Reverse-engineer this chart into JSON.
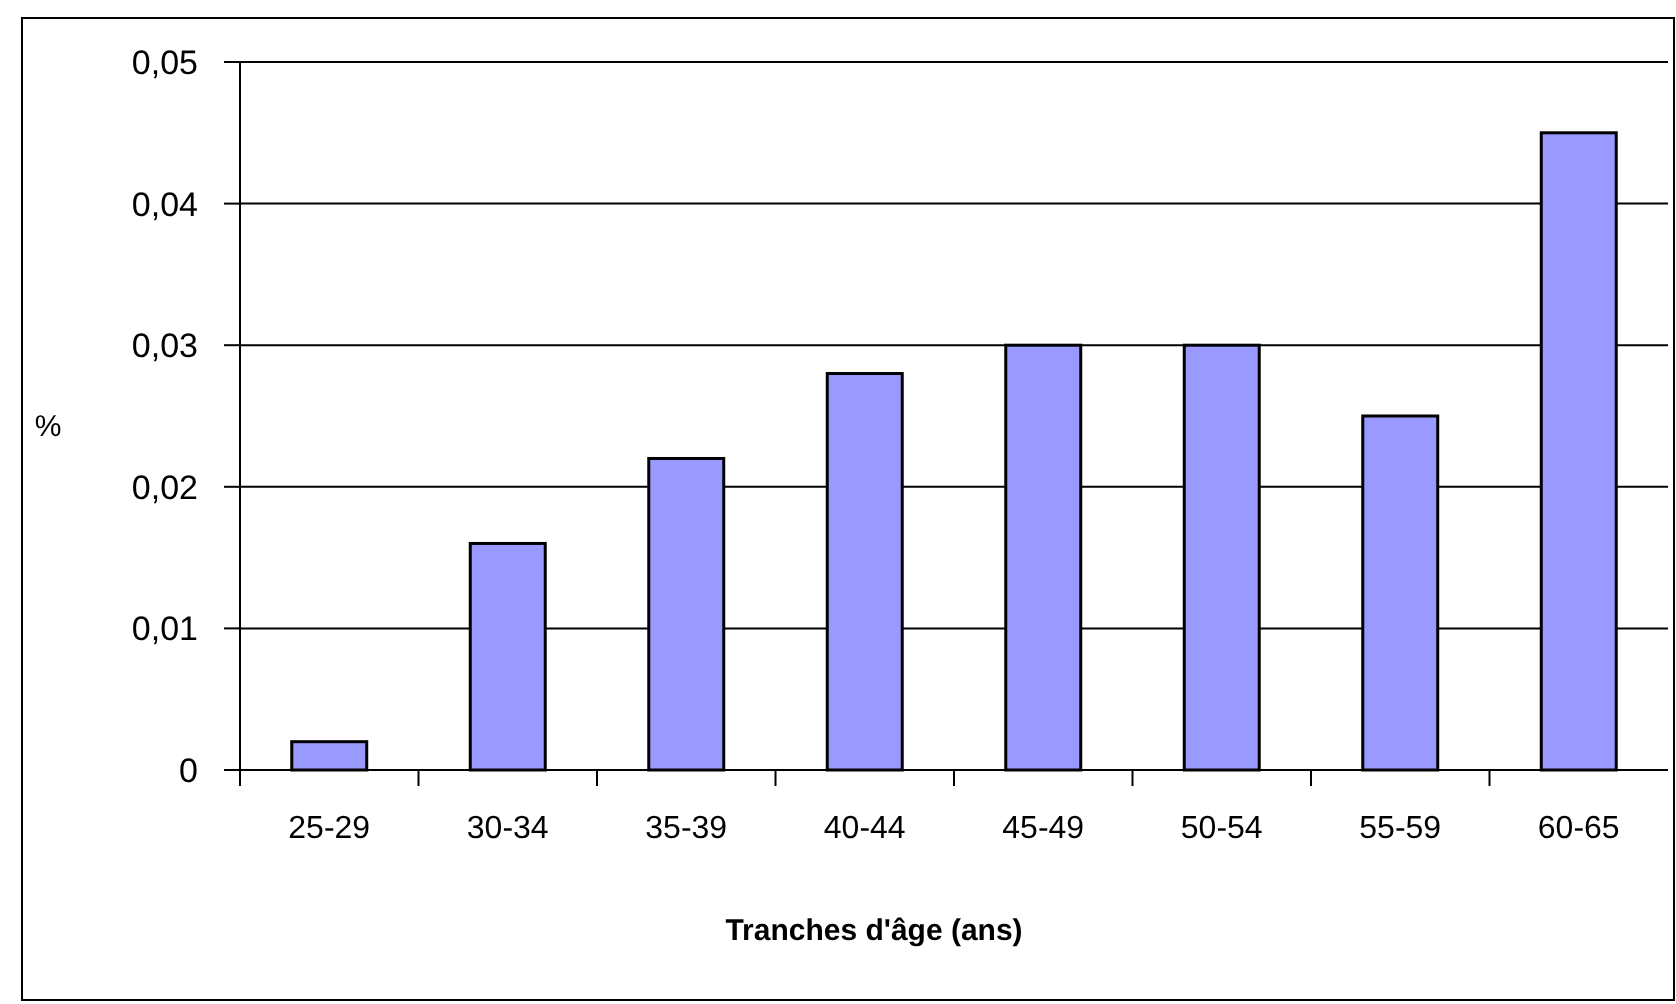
{
  "chart_data": {
    "type": "bar",
    "xlabel": "Tranches d'âge (ans)",
    "ylabel": "%",
    "categories": [
      "25-29",
      "30-34",
      "35-39",
      "40-44",
      "45-49",
      "50-54",
      "55-59",
      "60-65"
    ],
    "values": [
      0.002,
      0.016,
      0.022,
      0.028,
      0.03,
      0.03,
      0.025,
      0.045
    ],
    "color": "#9999ff",
    "ylim": [
      0,
      0.05
    ],
    "yticks": [
      {
        "value": 0,
        "label": "0"
      },
      {
        "value": 0.01,
        "label": "0,01"
      },
      {
        "value": 0.02,
        "label": "0,02"
      },
      {
        "value": 0.03,
        "label": "0,03"
      },
      {
        "value": 0.04,
        "label": "0,04"
      },
      {
        "value": 0.05,
        "label": "0,05"
      }
    ],
    "grid": "y"
  }
}
